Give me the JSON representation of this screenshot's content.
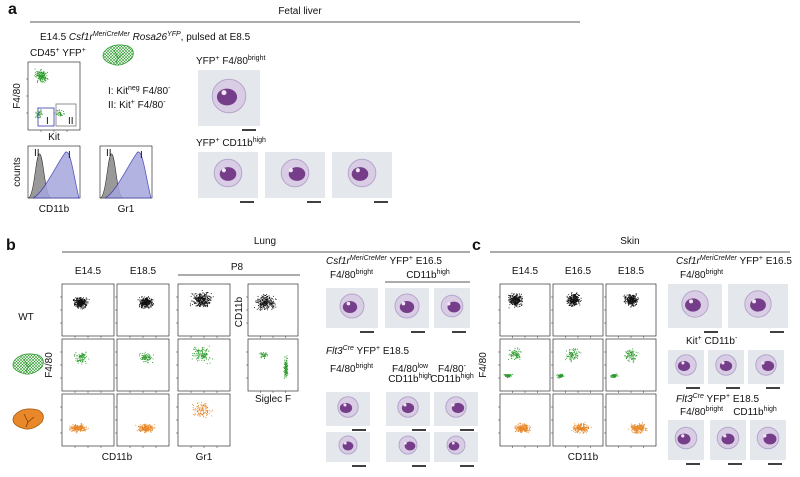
{
  "panel_a": {
    "letter": "a",
    "title": "Fetal liver",
    "subtitle": [
      {
        "text": "E14.5 "
      },
      {
        "text": "Csf1r",
        "style": "italic"
      },
      {
        "text": "MeriCreMer",
        "style": "italic-sup"
      },
      {
        "text": " "
      },
      {
        "text": "Rosa26",
        "style": "italic"
      },
      {
        "text": "YFP",
        "style": "italic-sup"
      },
      {
        "text": ", pulsed at E8.5"
      }
    ],
    "gate_label": [
      {
        "text": "CD45"
      },
      {
        "text": "+",
        "style": "sup"
      },
      {
        "text": " YFP"
      },
      {
        "text": "+",
        "style": "sup"
      }
    ],
    "y_axis": "F4/80",
    "x_axis": "Kit",
    "gate_marks": [
      "I",
      "II"
    ],
    "gate_I": [
      {
        "text": "I: Kit"
      },
      {
        "text": "neg",
        "style": "sup"
      },
      {
        "text": " F4/80"
      },
      {
        "text": "-",
        "style": "sup"
      }
    ],
    "gate_II": [
      {
        "text": "II: Kit"
      },
      {
        "text": "+",
        "style": "sup"
      },
      {
        "text": " F4/80"
      },
      {
        "text": "-",
        "style": "sup"
      }
    ],
    "hist_y": "counts",
    "histograms": [
      {
        "x_axis": "CD11b",
        "marks": [
          "II",
          "I"
        ]
      },
      {
        "x_axis": "Gr1",
        "marks": [
          "II",
          "I"
        ]
      }
    ],
    "image_labels": [
      [
        {
          "text": "YFP"
        },
        {
          "text": "+",
          "style": "sup"
        },
        {
          "text": " F4/80"
        },
        {
          "text": "bright",
          "style": "sup"
        }
      ],
      [
        {
          "text": "YFP"
        },
        {
          "text": "+",
          "style": "sup"
        },
        {
          "text": " CD11b"
        },
        {
          "text": "high",
          "style": "sup"
        }
      ]
    ]
  },
  "panel_b": {
    "letter": "b",
    "title": "Lung",
    "columns": [
      "E14.5",
      "E18.5",
      "P8"
    ],
    "row_label": "WT",
    "y_axis": "F4/80",
    "x_axes": [
      "CD11b",
      "Gr1"
    ],
    "side_y_axis": "CD11b",
    "side_x_axis": "Siglec F",
    "group1": [
      {
        "text": "Csf1r",
        "style": "italic"
      },
      {
        "text": "MeriCreMer",
        "style": "italic-sup"
      },
      {
        "text": " YFP"
      },
      {
        "text": "+",
        "style": "sup"
      },
      {
        "text": " E16.5"
      }
    ],
    "group1_columns": [
      [
        {
          "text": "F4/80"
        },
        {
          "text": "bright",
          "style": "sup"
        }
      ],
      [
        {
          "text": "CD11b"
        },
        {
          "text": "high",
          "style": "sup"
        }
      ]
    ],
    "group2": [
      {
        "text": "Flt3",
        "style": "italic"
      },
      {
        "text": "Cre",
        "style": "italic-sup"
      },
      {
        "text": " YFP"
      },
      {
        "text": "+",
        "style": "sup"
      },
      {
        "text": " E18.5"
      }
    ],
    "group2_columns": [
      [
        [
          {
            "text": "F4/80"
          },
          {
            "text": "bright",
            "style": "sup"
          }
        ]
      ],
      [
        [
          {
            "text": "F4/80"
          },
          {
            "text": "low",
            "style": "sup"
          }
        ],
        [
          {
            "text": "CD11b"
          },
          {
            "text": "high",
            "style": "sup"
          }
        ]
      ],
      [
        [
          {
            "text": "F4/80"
          },
          {
            "text": "-",
            "style": "sup"
          }
        ],
        [
          {
            "text": "CD11b"
          },
          {
            "text": "high",
            "style": "sup"
          }
        ]
      ]
    ]
  },
  "panel_c": {
    "letter": "c",
    "title": "Skin",
    "columns": [
      "E14.5",
      "E16.5",
      "E18.5"
    ],
    "y_axis": "F4/80",
    "x_axis": "CD11b",
    "group1": [
      {
        "text": "Csf1r",
        "style": "italic"
      },
      {
        "text": "MeriCreMer",
        "style": "italic-sup"
      },
      {
        "text": " YFP"
      },
      {
        "text": "+",
        "style": "sup"
      },
      {
        "text": " E16.5"
      }
    ],
    "group1_columns": [
      [
        {
          "text": "F4/80"
        },
        {
          "text": "bright",
          "style": "sup"
        }
      ]
    ],
    "group1_row2": [
      {
        "text": "Kit"
      },
      {
        "text": "+",
        "style": "sup"
      },
      {
        "text": " CD11b"
      },
      {
        "text": "-",
        "style": "sup"
      }
    ],
    "group2": [
      {
        "text": "Flt3",
        "style": "italic"
      },
      {
        "text": "Cre",
        "style": "italic-sup"
      },
      {
        "text": " YFP"
      },
      {
        "text": "+",
        "style": "sup"
      },
      {
        "text": " E18.5"
      }
    ],
    "group2_columns": [
      [
        {
          "text": "F4/80"
        },
        {
          "text": "bright",
          "style": "sup"
        }
      ],
      [
        {
          "text": "CD11b"
        },
        {
          "text": "high",
          "style": "sup"
        }
      ]
    ]
  }
}
